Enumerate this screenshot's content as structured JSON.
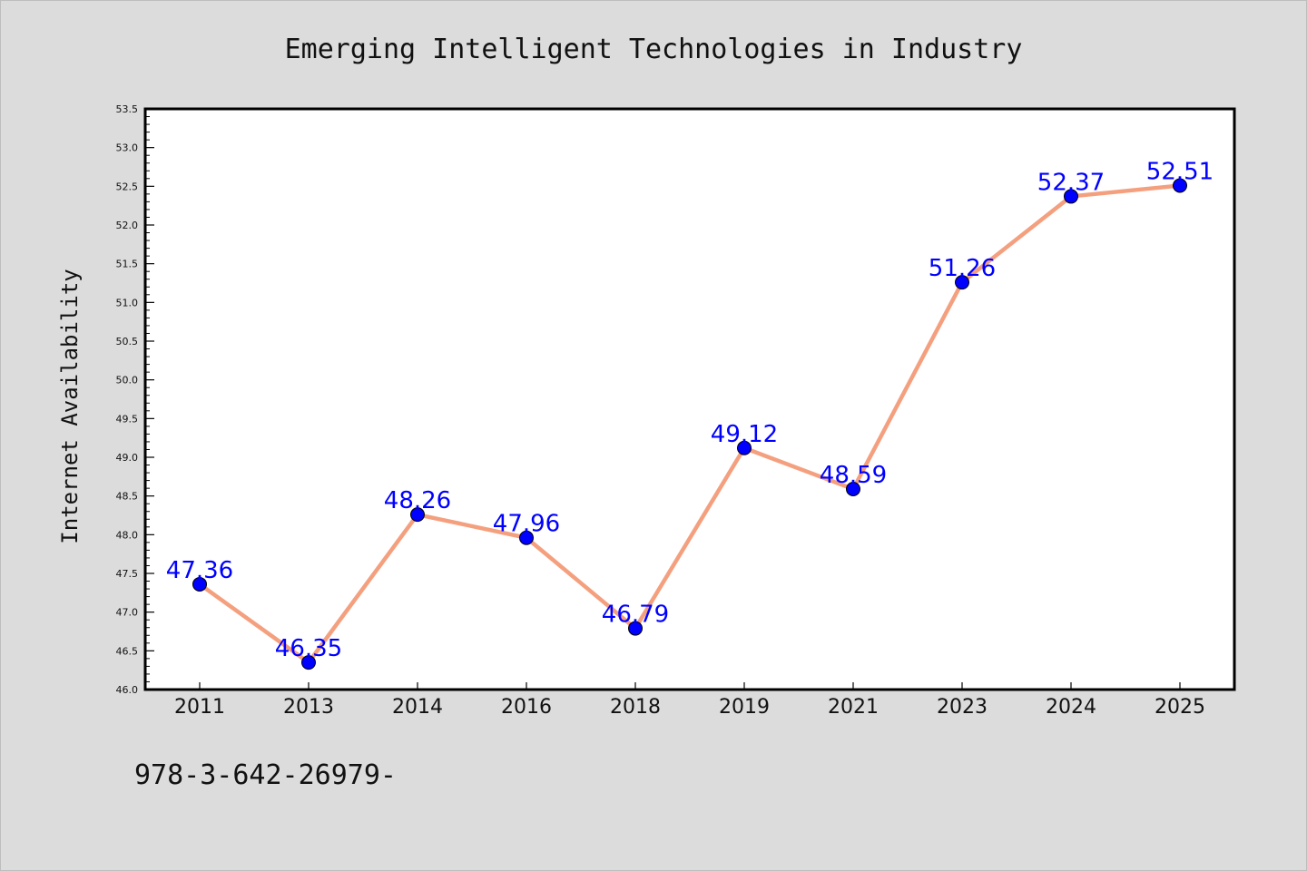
{
  "colors": {
    "background": "#dcdcdc",
    "plot_background": "#ffffff",
    "line": "#f4a07f",
    "marker": "#0000ff",
    "data_label": "#0000ff"
  },
  "footer_note": "978-3-642-26979-",
  "chart_data": {
    "type": "line",
    "title": "Emerging Intelligent Technologies in Industry",
    "xlabel": "",
    "ylabel": "Internet Availability",
    "categories": [
      "2011",
      "2013",
      "2014",
      "2016",
      "2018",
      "2019",
      "2021",
      "2023",
      "2024",
      "2025"
    ],
    "series": [
      {
        "values": [
          47.36,
          46.35,
          48.26,
          47.96,
          46.79,
          49.12,
          48.59,
          51.26,
          52.37,
          52.51
        ],
        "labels": [
          "47.36",
          "46.35",
          "48.26",
          "47.96",
          "46.79",
          "49.12",
          "48.59",
          "51.26",
          "52.37",
          "52.51"
        ]
      }
    ],
    "ylim": [
      46.0,
      53.5
    ],
    "yticks": [
      "46.0",
      "46.5",
      "47.0",
      "47.5",
      "48.0",
      "48.5",
      "49.0",
      "49.5",
      "50.0",
      "50.5",
      "51.0",
      "51.5",
      "52.0",
      "52.5",
      "53.0",
      "53.5"
    ],
    "grid": false,
    "legend": false
  }
}
